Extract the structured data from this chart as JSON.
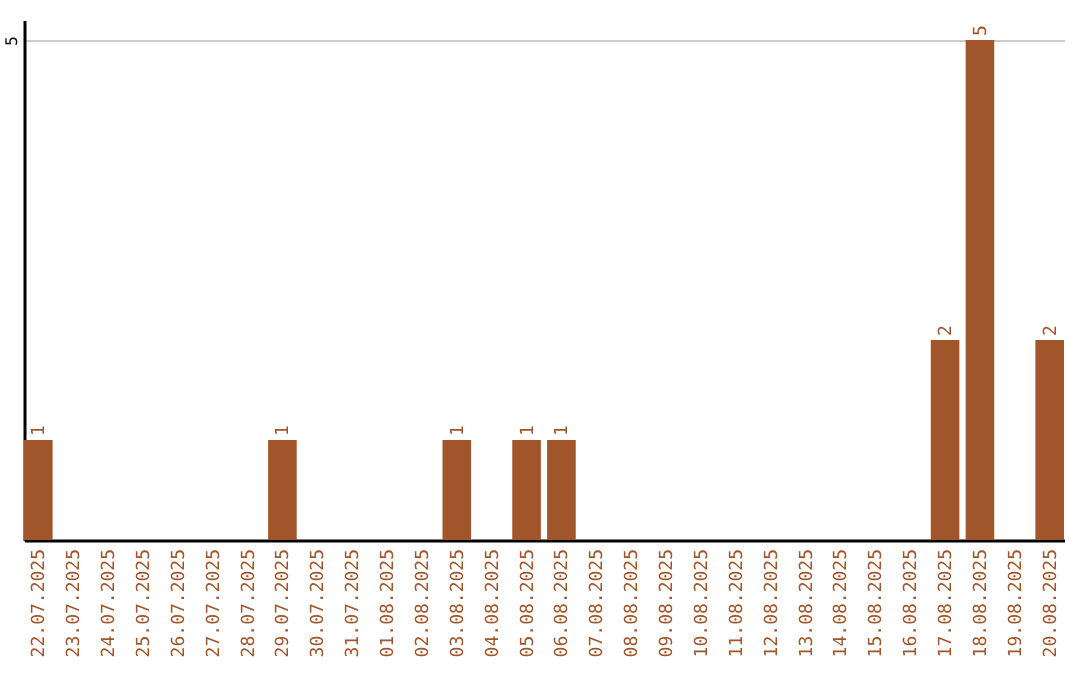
{
  "chart_data": {
    "type": "bar",
    "categories": [
      "22.07.2025",
      "23.07.2025",
      "24.07.2025",
      "25.07.2025",
      "26.07.2025",
      "27.07.2025",
      "28.07.2025",
      "29.07.2025",
      "30.07.2025",
      "31.07.2025",
      "01.08.2025",
      "02.08.2025",
      "03.08.2025",
      "04.08.2025",
      "05.08.2025",
      "06.08.2025",
      "07.08.2025",
      "08.08.2025",
      "09.08.2025",
      "10.08.2025",
      "11.08.2025",
      "12.08.2025",
      "13.08.2025",
      "14.08.2025",
      "15.08.2025",
      "16.08.2025",
      "17.08.2025",
      "18.08.2025",
      "19.08.2025",
      "20.08.2025"
    ],
    "values": [
      1,
      0,
      0,
      0,
      0,
      0,
      0,
      1,
      0,
      0,
      0,
      0,
      1,
      0,
      1,
      1,
      0,
      0,
      0,
      0,
      0,
      0,
      0,
      0,
      0,
      0,
      2,
      5,
      0,
      2
    ],
    "value_labels": [
      "1",
      null,
      null,
      null,
      null,
      null,
      null,
      "1",
      null,
      null,
      null,
      null,
      "1",
      null,
      "1",
      "1",
      null,
      null,
      null,
      null,
      null,
      null,
      null,
      null,
      null,
      null,
      "2",
      "5",
      null,
      "2"
    ],
    "color": "#a0552a",
    "ylim": [
      0,
      5.2
    ],
    "yticks": [
      5
    ],
    "grid": "y"
  }
}
